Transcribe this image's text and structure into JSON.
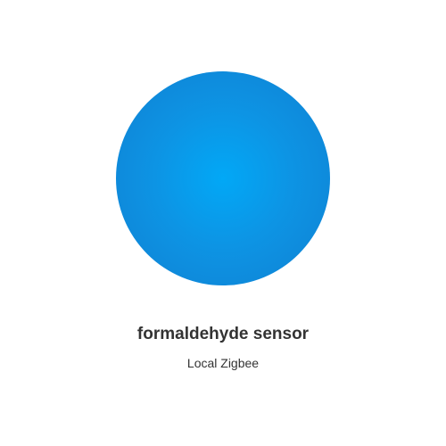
{
  "device": {
    "name": "formaldehyde sensor",
    "protocol": "Local Zigbee",
    "image_icon": "circular-sensor-image",
    "image_color": "#0d94e4"
  }
}
